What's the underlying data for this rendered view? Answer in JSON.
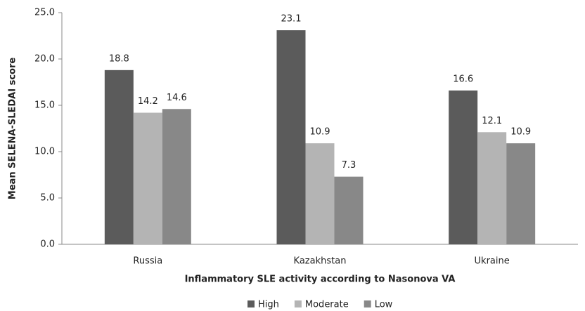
{
  "chart_data": {
    "type": "bar",
    "x_label": "Inflammatory SLE activity according to Nasonova VA",
    "y_label": "Mean SELENA-SLEDAI score",
    "categories": [
      "Russia",
      "Kazakhstan",
      "Ukraine"
    ],
    "series": [
      {
        "name": "High",
        "color": "#5b5b5b",
        "values": [
          18.8,
          23.1,
          16.6
        ]
      },
      {
        "name": "Moderate",
        "color": "#b4b4b4",
        "values": [
          14.2,
          10.9,
          12.1
        ]
      },
      {
        "name": "Low",
        "color": "#888888",
        "values": [
          14.6,
          7.3,
          10.9
        ]
      }
    ],
    "ylim": [
      0,
      25
    ],
    "yticks": [
      {
        "value": 0,
        "label": "0.0"
      },
      {
        "value": 5,
        "label": "5.0"
      },
      {
        "value": 10,
        "label": "10.0"
      },
      {
        "value": 15,
        "label": "15.0"
      },
      {
        "value": 20,
        "label": "20.0"
      },
      {
        "value": 25,
        "label": "25.0"
      }
    ],
    "grid": false,
    "legend": "bottom"
  }
}
